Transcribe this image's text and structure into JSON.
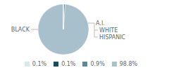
{
  "chart_data": {
    "type": "pie",
    "categories": [
      "BLACK",
      "A.I.",
      "WHITE",
      "HISPANIC"
    ],
    "values": [
      98.8,
      0.9,
      0.1,
      0.1
    ],
    "value_labels": [
      "98.8%",
      "0.9%",
      "0.1%",
      "0.1%"
    ],
    "colors": [
      "#a8bfcc",
      "#5a8a9f",
      "#dce8ef",
      "#1a4a5e"
    ],
    "legend": "bottom"
  }
}
